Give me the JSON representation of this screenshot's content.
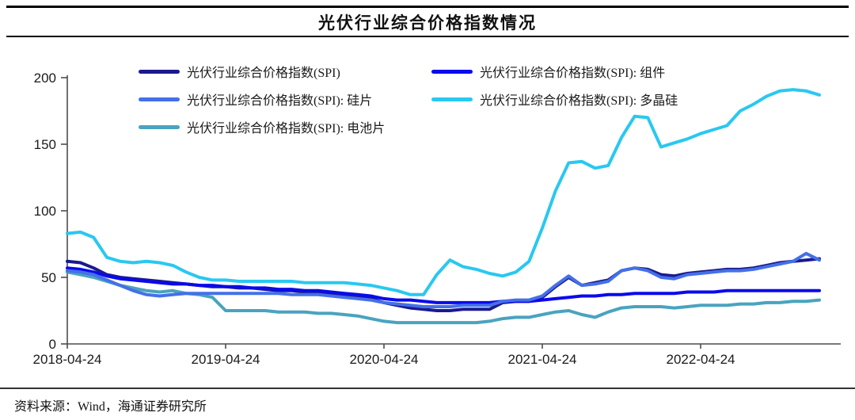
{
  "page": {
    "title": "光伏行业综合价格指数情况",
    "source_label": "资料来源：Wind，海通证券研究所"
  },
  "chart_data": {
    "type": "line",
    "title": "光伏行业综合价格指数情况",
    "xlabel": "",
    "ylabel": "",
    "ylim": [
      0,
      200
    ],
    "y_ticks": [
      0,
      50,
      100,
      150,
      200
    ],
    "x_tick_labels": [
      "2018-04-24",
      "2019-04-24",
      "2020-04-24",
      "2021-04-24",
      "2022-04-24"
    ],
    "grid": false,
    "legend_position": "top",
    "months": [
      "2018-04",
      "2018-05",
      "2018-06",
      "2018-07",
      "2018-08",
      "2018-09",
      "2018-10",
      "2018-11",
      "2018-12",
      "2019-01",
      "2019-02",
      "2019-03",
      "2019-04",
      "2019-05",
      "2019-06",
      "2019-07",
      "2019-08",
      "2019-09",
      "2019-10",
      "2019-11",
      "2019-12",
      "2020-01",
      "2020-02",
      "2020-03",
      "2020-04",
      "2020-05",
      "2020-06",
      "2020-07",
      "2020-08",
      "2020-09",
      "2020-10",
      "2020-11",
      "2020-12",
      "2021-01",
      "2021-02",
      "2021-03",
      "2021-04",
      "2021-05",
      "2021-06",
      "2021-07",
      "2021-08",
      "2021-09",
      "2021-10",
      "2021-11",
      "2021-12",
      "2022-01",
      "2022-02",
      "2022-03",
      "2022-04",
      "2022-05",
      "2022-06",
      "2022-07",
      "2022-08",
      "2022-09",
      "2022-10",
      "2022-11",
      "2022-12",
      "2023-01"
    ],
    "series": [
      {
        "name": "光伏行业综合价格指数(SPI)",
        "color": "#1a1a8f",
        "values": [
          62,
          61,
          57,
          52,
          50,
          49,
          48,
          47,
          46,
          45,
          44,
          43,
          43,
          42,
          42,
          41,
          40,
          40,
          39,
          39,
          38,
          37,
          36,
          34,
          31,
          29,
          27,
          26,
          25,
          25,
          26,
          26,
          26,
          31,
          32,
          32,
          35,
          43,
          50,
          44,
          46,
          48,
          55,
          57,
          56,
          52,
          51,
          53,
          54,
          55,
          56,
          56,
          57,
          59,
          61,
          62,
          63,
          64
        ]
      },
      {
        "name": "光伏行业综合价格指数(SPI): 组件",
        "color": "#0a0aeb",
        "values": [
          57,
          56,
          54,
          51,
          49,
          48,
          47,
          46,
          45,
          45,
          44,
          44,
          43,
          43,
          42,
          42,
          41,
          41,
          40,
          40,
          39,
          38,
          37,
          36,
          34,
          33,
          33,
          32,
          31,
          31,
          31,
          31,
          31,
          32,
          32,
          32,
          33,
          34,
          35,
          36,
          36,
          37,
          37,
          38,
          38,
          38,
          38,
          39,
          39,
          39,
          40,
          40,
          40,
          40,
          40,
          40,
          40,
          40
        ]
      },
      {
        "name": "光伏行业综合价格指数(SPI): 硅片",
        "color": "#4470e8",
        "values": [
          55,
          54,
          52,
          48,
          44,
          40,
          37,
          36,
          37,
          38,
          38,
          38,
          38,
          38,
          38,
          38,
          38,
          37,
          37,
          37,
          36,
          35,
          34,
          33,
          31,
          30,
          29,
          28,
          28,
          28,
          29,
          29,
          29,
          32,
          33,
          33,
          36,
          44,
          51,
          44,
          45,
          47,
          55,
          57,
          55,
          50,
          49,
          52,
          53,
          54,
          55,
          55,
          56,
          58,
          60,
          62,
          68,
          63
        ]
      },
      {
        "name": "光伏行业综合价格指数(SPI): 多晶硅",
        "color": "#29c8f0",
        "values": [
          83,
          84,
          80,
          65,
          62,
          61,
          62,
          61,
          59,
          54,
          50,
          48,
          48,
          47,
          47,
          47,
          47,
          47,
          46,
          46,
          46,
          46,
          45,
          44,
          42,
          40,
          37,
          37,
          52,
          63,
          58,
          56,
          53,
          51,
          54,
          62,
          87,
          115,
          136,
          137,
          132,
          134,
          155,
          171,
          170,
          148,
          151,
          154,
          158,
          161,
          164,
          175,
          180,
          186,
          190,
          191,
          190,
          187
        ]
      },
      {
        "name": "光伏行业综合价格指数(SPI): 电池片",
        "color": "#4aa3bf",
        "values": [
          54,
          52,
          50,
          47,
          44,
          42,
          40,
          39,
          40,
          38,
          37,
          35,
          25,
          25,
          25,
          25,
          24,
          24,
          24,
          23,
          23,
          22,
          21,
          19,
          17,
          16,
          16,
          16,
          16,
          16,
          16,
          16,
          17,
          19,
          20,
          20,
          22,
          24,
          25,
          22,
          20,
          24,
          27,
          28,
          28,
          28,
          27,
          28,
          29,
          29,
          29,
          30,
          30,
          31,
          31,
          32,
          32,
          33
        ]
      }
    ]
  }
}
